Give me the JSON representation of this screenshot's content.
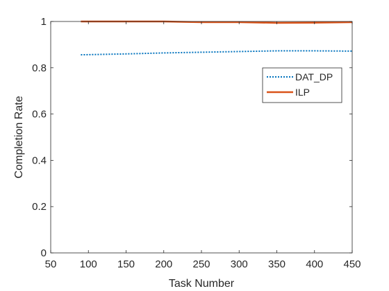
{
  "chart_data": {
    "type": "line",
    "title": "",
    "xlabel": "Task Number",
    "ylabel": "Completion Rate",
    "xlim": [
      50,
      450
    ],
    "ylim": [
      0,
      1
    ],
    "xticks": [
      50,
      100,
      150,
      200,
      250,
      300,
      350,
      400,
      450
    ],
    "yticks": [
      0,
      0.2,
      0.4,
      0.6,
      0.8,
      1
    ],
    "xtick_labels": [
      "50",
      "100",
      "150",
      "200",
      "250",
      "300",
      "350",
      "400",
      "450"
    ],
    "ytick_labels": [
      "0",
      "0.2",
      "0.4",
      "0.6",
      "0.8",
      "1"
    ],
    "grid": false,
    "legend_position": "top-right",
    "series": [
      {
        "name": "DAT_DP",
        "color": "#0072BD",
        "line_style": "dotted",
        "x": [
          90,
          150,
          200,
          250,
          300,
          350,
          400,
          450
        ],
        "y": [
          0.856,
          0.86,
          0.864,
          0.867,
          0.87,
          0.873,
          0.873,
          0.872
        ]
      },
      {
        "name": "ILP",
        "color": "#D95319",
        "line_style": "solid",
        "x": [
          90,
          150,
          200,
          250,
          300,
          350,
          400,
          450
        ],
        "y": [
          1.0,
          1.0,
          1.0,
          0.997,
          0.997,
          0.994,
          0.995,
          0.997
        ]
      }
    ]
  }
}
